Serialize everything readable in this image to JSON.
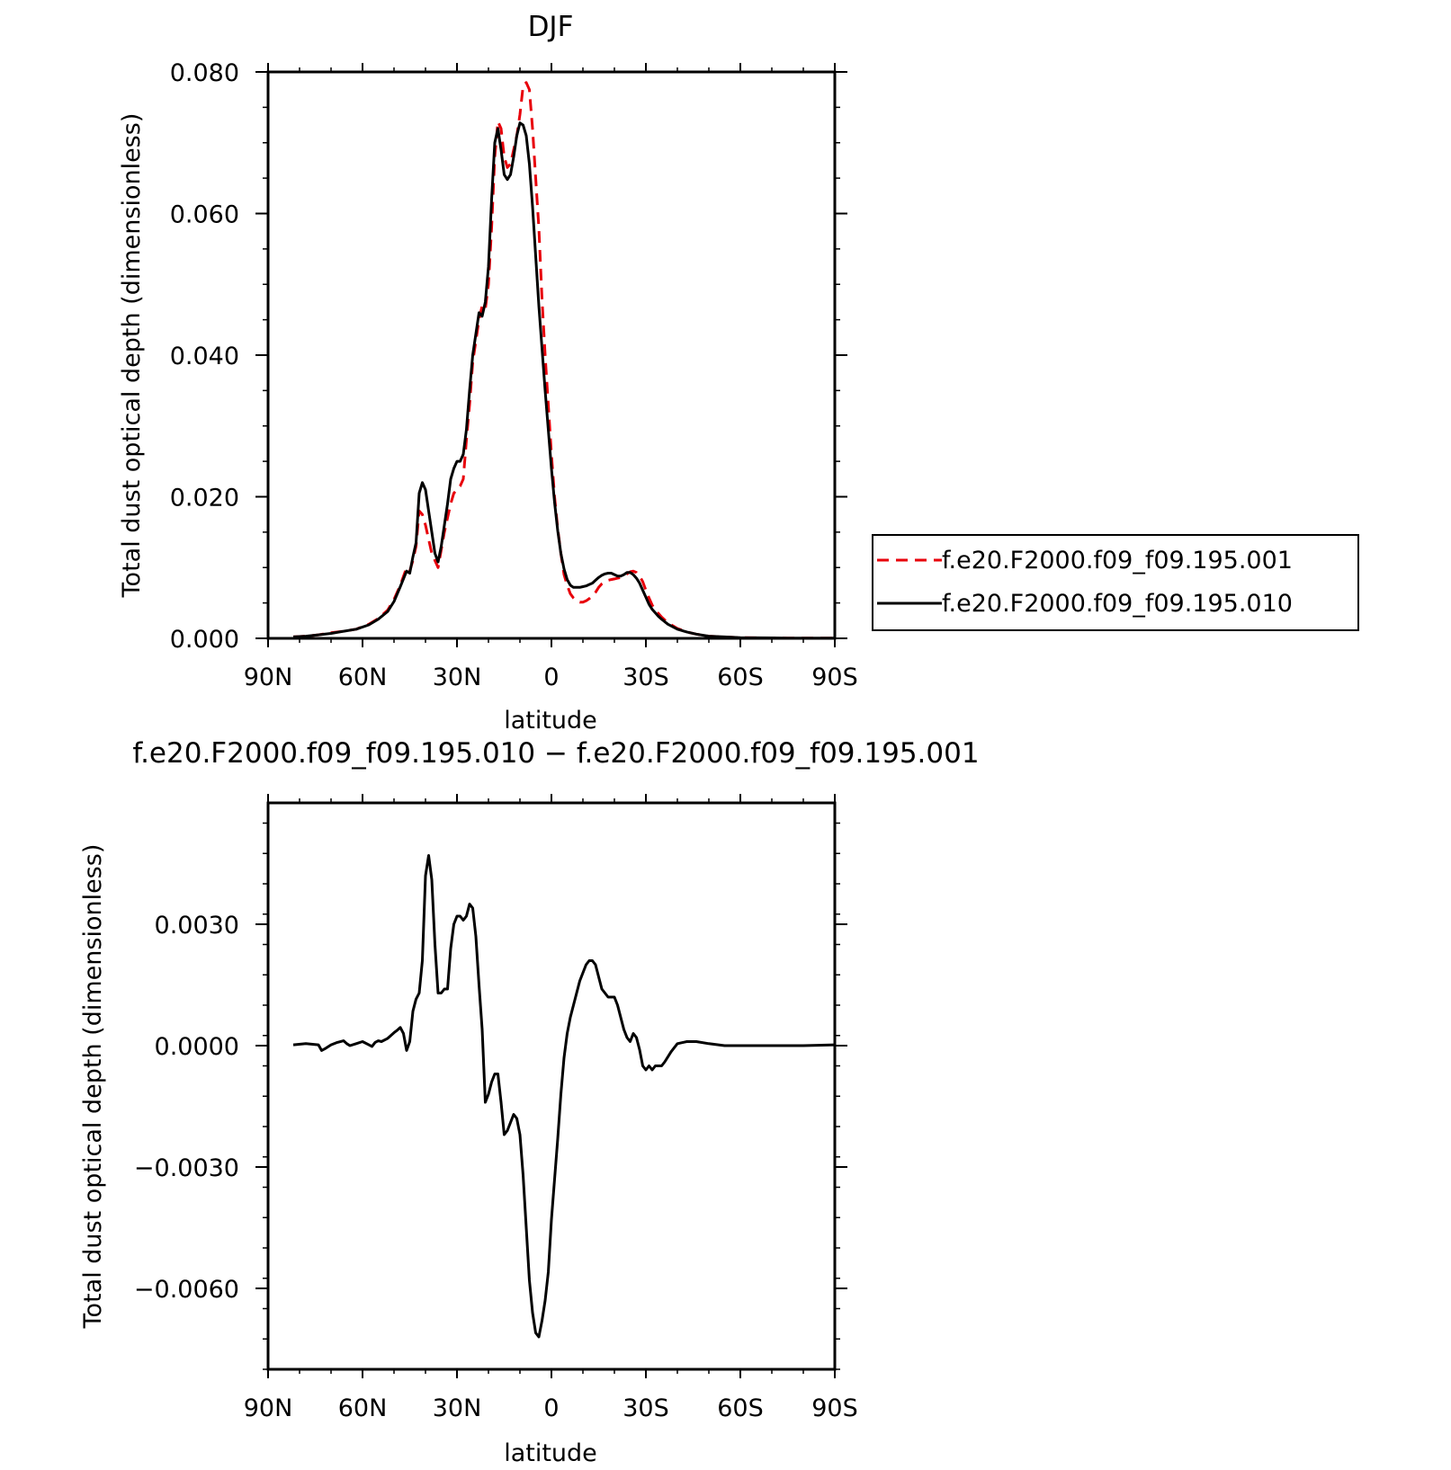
{
  "colors": {
    "red_series": "#e8000b",
    "black_series": "#000000",
    "axis": "#000000",
    "background": "#ffffff"
  },
  "chart_data": [
    {
      "type": "line",
      "title": "DJF",
      "xlabel": "latitude",
      "ylabel": "Total dust optical depth (dimensionless)",
      "xlim": [
        90,
        -90
      ],
      "ylim": [
        0.0,
        0.08
      ],
      "x_ticks": [
        90,
        60,
        30,
        0,
        -30,
        -60,
        -90
      ],
      "x_tick_labels": [
        "90N",
        "60N",
        "30N",
        "0",
        "30S",
        "60S",
        "90S"
      ],
      "y_ticks": [
        0.0,
        0.02,
        0.04,
        0.06,
        0.08
      ],
      "y_tick_labels": [
        "0.000",
        "0.020",
        "0.040",
        "0.060",
        "0.080"
      ],
      "grid": false,
      "legend_position": "right",
      "series": [
        {
          "name": "f.e20.F2000.f09_f09.195.001",
          "style": "dashed",
          "color": "#e8000b",
          "x": [
            82,
            78,
            74,
            70,
            66,
            62,
            58,
            55,
            52,
            50,
            48,
            46,
            45,
            44,
            43,
            42,
            41,
            40,
            39,
            38,
            37,
            36,
            35,
            34,
            33,
            32,
            31,
            30,
            29,
            28,
            27,
            26,
            25,
            24,
            23,
            22,
            21,
            20,
            19,
            18,
            17,
            16,
            15,
            14,
            13,
            12,
            11,
            10,
            9,
            8,
            7,
            6,
            5,
            4,
            3,
            2,
            1,
            0,
            -1,
            -2,
            -3,
            -4,
            -5,
            -6,
            -7,
            -8,
            -9,
            -10,
            -11,
            -12,
            -13,
            -14,
            -15,
            -16,
            -17,
            -18,
            -19,
            -20,
            -21,
            -22,
            -23,
            -24,
            -25,
            -26,
            -27,
            -28,
            -29,
            -30,
            -31,
            -32,
            -33,
            -34,
            -35,
            -37,
            -40,
            -43,
            -46,
            -50,
            -55,
            -60,
            -65,
            -70,
            -75,
            -80,
            -85,
            -90
          ],
          "y": [
            0.0002,
            0.0003,
            0.0005,
            0.0008,
            0.001,
            0.0013,
            0.002,
            0.0028,
            0.004,
            0.0055,
            0.0075,
            0.01,
            0.0095,
            0.011,
            0.013,
            0.018,
            0.0175,
            0.016,
            0.014,
            0.012,
            0.011,
            0.01,
            0.0125,
            0.015,
            0.017,
            0.019,
            0.0205,
            0.021,
            0.0215,
            0.0225,
            0.028,
            0.033,
            0.039,
            0.042,
            0.045,
            0.047,
            0.0465,
            0.05,
            0.058,
            0.068,
            0.073,
            0.072,
            0.068,
            0.0665,
            0.067,
            0.069,
            0.071,
            0.074,
            0.078,
            0.0785,
            0.0775,
            0.072,
            0.065,
            0.058,
            0.048,
            0.04,
            0.033,
            0.026,
            0.02,
            0.0155,
            0.012,
            0.009,
            0.0075,
            0.0063,
            0.0057,
            0.0053,
            0.0051,
            0.0051,
            0.0053,
            0.0056,
            0.006,
            0.0065,
            0.0072,
            0.0077,
            0.008,
            0.0082,
            0.0083,
            0.0084,
            0.0085,
            0.0086,
            0.0088,
            0.0091,
            0.0094,
            0.0095,
            0.0093,
            0.0088,
            0.008,
            0.0068,
            0.0057,
            0.0047,
            0.004,
            0.0035,
            0.003,
            0.0022,
            0.0014,
            0.0009,
            0.0006,
            0.0003,
            0.0002,
            0.0001,
            8e-05,
            6e-05,
            4e-05,
            3e-05,
            2e-05,
            2e-05
          ]
        },
        {
          "name": "f.e20.F2000.f09_f09.195.010",
          "style": "solid",
          "color": "#000000",
          "x": [
            82,
            78,
            74,
            70,
            66,
            62,
            58,
            55,
            52,
            50,
            48,
            46,
            45,
            44,
            43,
            42,
            41,
            40,
            39,
            38,
            37,
            36,
            35,
            34,
            33,
            32,
            31,
            30,
            29,
            28,
            27,
            26,
            25,
            24,
            23,
            22,
            21,
            20,
            19,
            18,
            17,
            16,
            15,
            14,
            13,
            12,
            11,
            10,
            9,
            8,
            7,
            6,
            5,
            4,
            3,
            2,
            1,
            0,
            -1,
            -2,
            -3,
            -4,
            -5,
            -6,
            -7,
            -8,
            -9,
            -10,
            -11,
            -12,
            -13,
            -14,
            -15,
            -16,
            -17,
            -18,
            -19,
            -20,
            -21,
            -22,
            -23,
            -24,
            -25,
            -26,
            -27,
            -28,
            -29,
            -30,
            -31,
            -32,
            -33,
            -34,
            -35,
            -37,
            -40,
            -43,
            -46,
            -50,
            -55,
            -60,
            -65,
            -70,
            -75,
            -80,
            -85,
            -90
          ],
          "y": [
            0.0002,
            0.0003,
            0.0005,
            0.0007,
            0.001,
            0.0013,
            0.0019,
            0.0027,
            0.0038,
            0.0052,
            0.0073,
            0.0095,
            0.0092,
            0.0115,
            0.0135,
            0.0205,
            0.022,
            0.021,
            0.018,
            0.015,
            0.012,
            0.0108,
            0.013,
            0.016,
            0.019,
            0.0225,
            0.024,
            0.025,
            0.025,
            0.026,
            0.0295,
            0.035,
            0.04,
            0.043,
            0.046,
            0.0455,
            0.0475,
            0.0525,
            0.062,
            0.07,
            0.072,
            0.069,
            0.0655,
            0.0648,
            0.0655,
            0.068,
            0.071,
            0.0728,
            0.0725,
            0.071,
            0.067,
            0.061,
            0.054,
            0.047,
            0.041,
            0.035,
            0.0295,
            0.024,
            0.0192,
            0.0152,
            0.012,
            0.0098,
            0.0083,
            0.0075,
            0.0072,
            0.0072,
            0.0072,
            0.0073,
            0.0074,
            0.0076,
            0.0078,
            0.0082,
            0.0086,
            0.0089,
            0.0091,
            0.0092,
            0.0092,
            0.009,
            0.0088,
            0.0088,
            0.009,
            0.0093,
            0.0093,
            0.009,
            0.0085,
            0.0078,
            0.0068,
            0.0058,
            0.0048,
            0.0041,
            0.0036,
            0.0031,
            0.0027,
            0.002,
            0.0013,
            0.0009,
            0.0006,
            0.0003,
            0.0002,
            0.0001,
            8e-05,
            6e-05,
            4e-05,
            3e-05,
            2e-05,
            2e-05
          ]
        }
      ]
    },
    {
      "type": "line",
      "title": "f.e20.F2000.f09_f09.195.010 − f.e20.F2000.f09_f09.195.001",
      "xlabel": "latitude",
      "ylabel": "Total dust optical depth (dimensionless)",
      "xlim": [
        90,
        -90
      ],
      "ylim": [
        -0.008,
        0.006
      ],
      "x_ticks": [
        90,
        60,
        30,
        0,
        -30,
        -60,
        -90
      ],
      "x_tick_labels": [
        "90N",
        "60N",
        "30N",
        "0",
        "30S",
        "60S",
        "90S"
      ],
      "y_ticks": [
        0.003,
        0.0,
        -0.003,
        -0.006
      ],
      "y_tick_labels": [
        "0.0030",
        "0.0000",
        "−0.0030",
        "−0.0060"
      ],
      "grid": false,
      "series": [
        {
          "style": "solid",
          "color": "#000000",
          "x": [
            82,
            78,
            74,
            73,
            72,
            70,
            68,
            66,
            65,
            64,
            62,
            60,
            58,
            57,
            56,
            55,
            54,
            52,
            50,
            49,
            48,
            47,
            46,
            45,
            44,
            43,
            42,
            41,
            40,
            39,
            38,
            37,
            36,
            35,
            34,
            33,
            32,
            31,
            30,
            29,
            28,
            27,
            26,
            25,
            24,
            23,
            22,
            21,
            20,
            19,
            18,
            17,
            16,
            15,
            14,
            13,
            12,
            11,
            10,
            9,
            8,
            7,
            6,
            5,
            4,
            3,
            2,
            1,
            0,
            -1,
            -2,
            -3,
            -4,
            -5,
            -6,
            -7,
            -8,
            -9,
            -10,
            -11,
            -12,
            -13,
            -14,
            -15,
            -16,
            -17,
            -18,
            -19,
            -20,
            -21,
            -22,
            -23,
            -24,
            -25,
            -26,
            -27,
            -28,
            -29,
            -30,
            -31,
            -32,
            -33,
            -34,
            -35,
            -36,
            -38,
            -40,
            -43,
            -46,
            -50,
            -55,
            -60,
            -70,
            -80,
            -90
          ],
          "y": [
            2e-05,
            5e-05,
            2e-05,
            -0.00012,
            -8e-05,
            2e-05,
            8e-05,
            0.00012,
            5e-05,
            0.0,
            5e-05,
            0.0001,
            2e-05,
            -2e-05,
            8e-05,
            0.00012,
            0.0001,
            0.00018,
            0.00032,
            0.00038,
            0.00045,
            0.0003,
            -0.00012,
            0.0001,
            0.00085,
            0.00115,
            0.0013,
            0.0021,
            0.0042,
            0.0047,
            0.0041,
            0.0025,
            0.0013,
            0.0013,
            0.0014,
            0.0014,
            0.0024,
            0.003,
            0.0032,
            0.0032,
            0.0031,
            0.0032,
            0.0035,
            0.0034,
            0.0027,
            0.0015,
            0.0004,
            -0.0014,
            -0.0012,
            -0.0009,
            -0.0007,
            -0.0007,
            -0.0014,
            -0.0022,
            -0.0021,
            -0.0019,
            -0.0017,
            -0.0018,
            -0.0022,
            -0.0032,
            -0.0045,
            -0.0058,
            -0.0066,
            -0.0071,
            -0.0072,
            -0.0068,
            -0.0063,
            -0.0056,
            -0.0043,
            -0.0033,
            -0.0023,
            -0.0012,
            -0.0003,
            0.0003,
            0.0007,
            0.001,
            0.0013,
            0.0016,
            0.0018,
            0.002,
            0.0021,
            0.0021,
            0.002,
            0.0017,
            0.0014,
            0.0013,
            0.0012,
            0.0012,
            0.0012,
            0.001,
            0.0007,
            0.0004,
            0.0002,
            0.0001,
            0.0003,
            0.0002,
            -0.0001,
            -0.0005,
            -0.0006,
            -0.0005,
            -0.0006,
            -0.0005,
            -0.0005,
            -0.0005,
            -0.0004,
            -0.00015,
            5e-05,
            0.0001,
            0.0001,
            5e-05,
            0.0,
            0.0,
            0.0,
            0.0,
            2e-05
          ]
        }
      ]
    }
  ]
}
